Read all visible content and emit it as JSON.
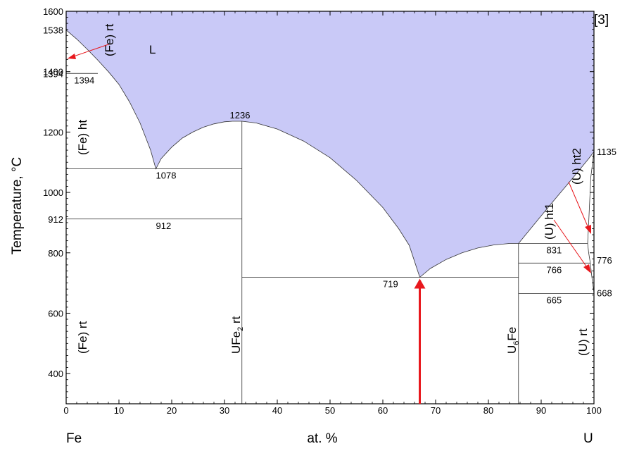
{
  "chart_data": {
    "type": "phase_diagram",
    "reference": "[3]",
    "ylabel": "Temperature, °C",
    "xlabel": "at. %",
    "x_left_element": "Fe",
    "x_right_element": "U",
    "xlim": [
      0,
      100
    ],
    "ylim": [
      300,
      1600
    ],
    "x_ticks": [
      0,
      10,
      20,
      30,
      40,
      50,
      60,
      70,
      80,
      90,
      100
    ],
    "y_ticks": [
      400,
      600,
      800,
      1000,
      1200,
      1400,
      1600
    ],
    "y_extra_labels": [
      {
        "text": "1538",
        "y": 1538
      },
      {
        "text": "1394",
        "y": 1394
      },
      {
        "text": "912",
        "y": 912
      }
    ],
    "liquid_fill_color": "#c9c9f7",
    "arrow_color": "#e8181d",
    "liquidus": [
      [
        0,
        1538
      ],
      [
        2,
        1508
      ],
      [
        4,
        1474
      ],
      [
        6,
        1438
      ],
      [
        8,
        1400
      ],
      [
        10,
        1358
      ],
      [
        12,
        1300
      ],
      [
        14,
        1230
      ],
      [
        16,
        1140
      ],
      [
        17,
        1078
      ],
      [
        18,
        1112
      ],
      [
        20,
        1150
      ],
      [
        22,
        1180
      ],
      [
        24,
        1200
      ],
      [
        26,
        1216
      ],
      [
        28,
        1227
      ],
      [
        30,
        1234
      ],
      [
        31.5,
        1236
      ],
      [
        33.3,
        1236
      ],
      [
        36,
        1230
      ],
      [
        40,
        1210
      ],
      [
        45,
        1170
      ],
      [
        50,
        1115
      ],
      [
        55,
        1040
      ],
      [
        60,
        950
      ],
      [
        63,
        880
      ],
      [
        65,
        825
      ],
      [
        67,
        719
      ],
      [
        69,
        748
      ],
      [
        72,
        778
      ],
      [
        75,
        800
      ],
      [
        78,
        816
      ],
      [
        81,
        826
      ],
      [
        84,
        831
      ],
      [
        85.7,
        831
      ],
      [
        88,
        880
      ],
      [
        92,
        965
      ],
      [
        96,
        1048
      ],
      [
        99,
        1112
      ],
      [
        100,
        1135
      ]
    ],
    "isotherms": [
      {
        "label": "1394",
        "y": 1394,
        "x": [
          0,
          6
        ]
      },
      {
        "label": "1078",
        "y": 1078,
        "x": [
          0,
          33.3
        ]
      },
      {
        "label": "912",
        "y": 912,
        "x": [
          0,
          33.3
        ]
      },
      {
        "label": "1236",
        "y": 1236,
        "x": [
          33.3,
          33.3
        ]
      },
      {
        "label": "719",
        "y": 719,
        "x": [
          33.3,
          85.7
        ]
      },
      {
        "label": "831",
        "y": 831,
        "x": [
          85.7,
          98.8
        ]
      },
      {
        "label": "766",
        "y": 766,
        "x": [
          85.7,
          99.3
        ]
      },
      {
        "label": "665",
        "y": 665,
        "x": [
          85.7,
          100
        ]
      }
    ],
    "right_axis_labels": [
      {
        "text": "1135",
        "y": 1135
      },
      {
        "text": "776",
        "y": 776
      },
      {
        "text": "668",
        "y": 668
      }
    ],
    "compounds": [
      {
        "name": "UFe2 rt",
        "x": 33.3
      },
      {
        "name": "U6Fe",
        "x": 85.7
      }
    ],
    "phase_labels": {
      "liquid": "L",
      "fe_rt_top": "(Fe) rt",
      "fe_ht": "(Fe) ht",
      "fe_rt": "(Fe) rt",
      "ufe2_main": "UFe",
      "ufe2_sub": "2",
      "ufe2_tail": " rt",
      "u6fe_main": "U",
      "u6fe_sub": "6",
      "u6fe_tail": "Fe",
      "u_ht1": "(U) ht1",
      "u_ht2": "(U) ht2",
      "u_rt": "(U) rt"
    }
  }
}
